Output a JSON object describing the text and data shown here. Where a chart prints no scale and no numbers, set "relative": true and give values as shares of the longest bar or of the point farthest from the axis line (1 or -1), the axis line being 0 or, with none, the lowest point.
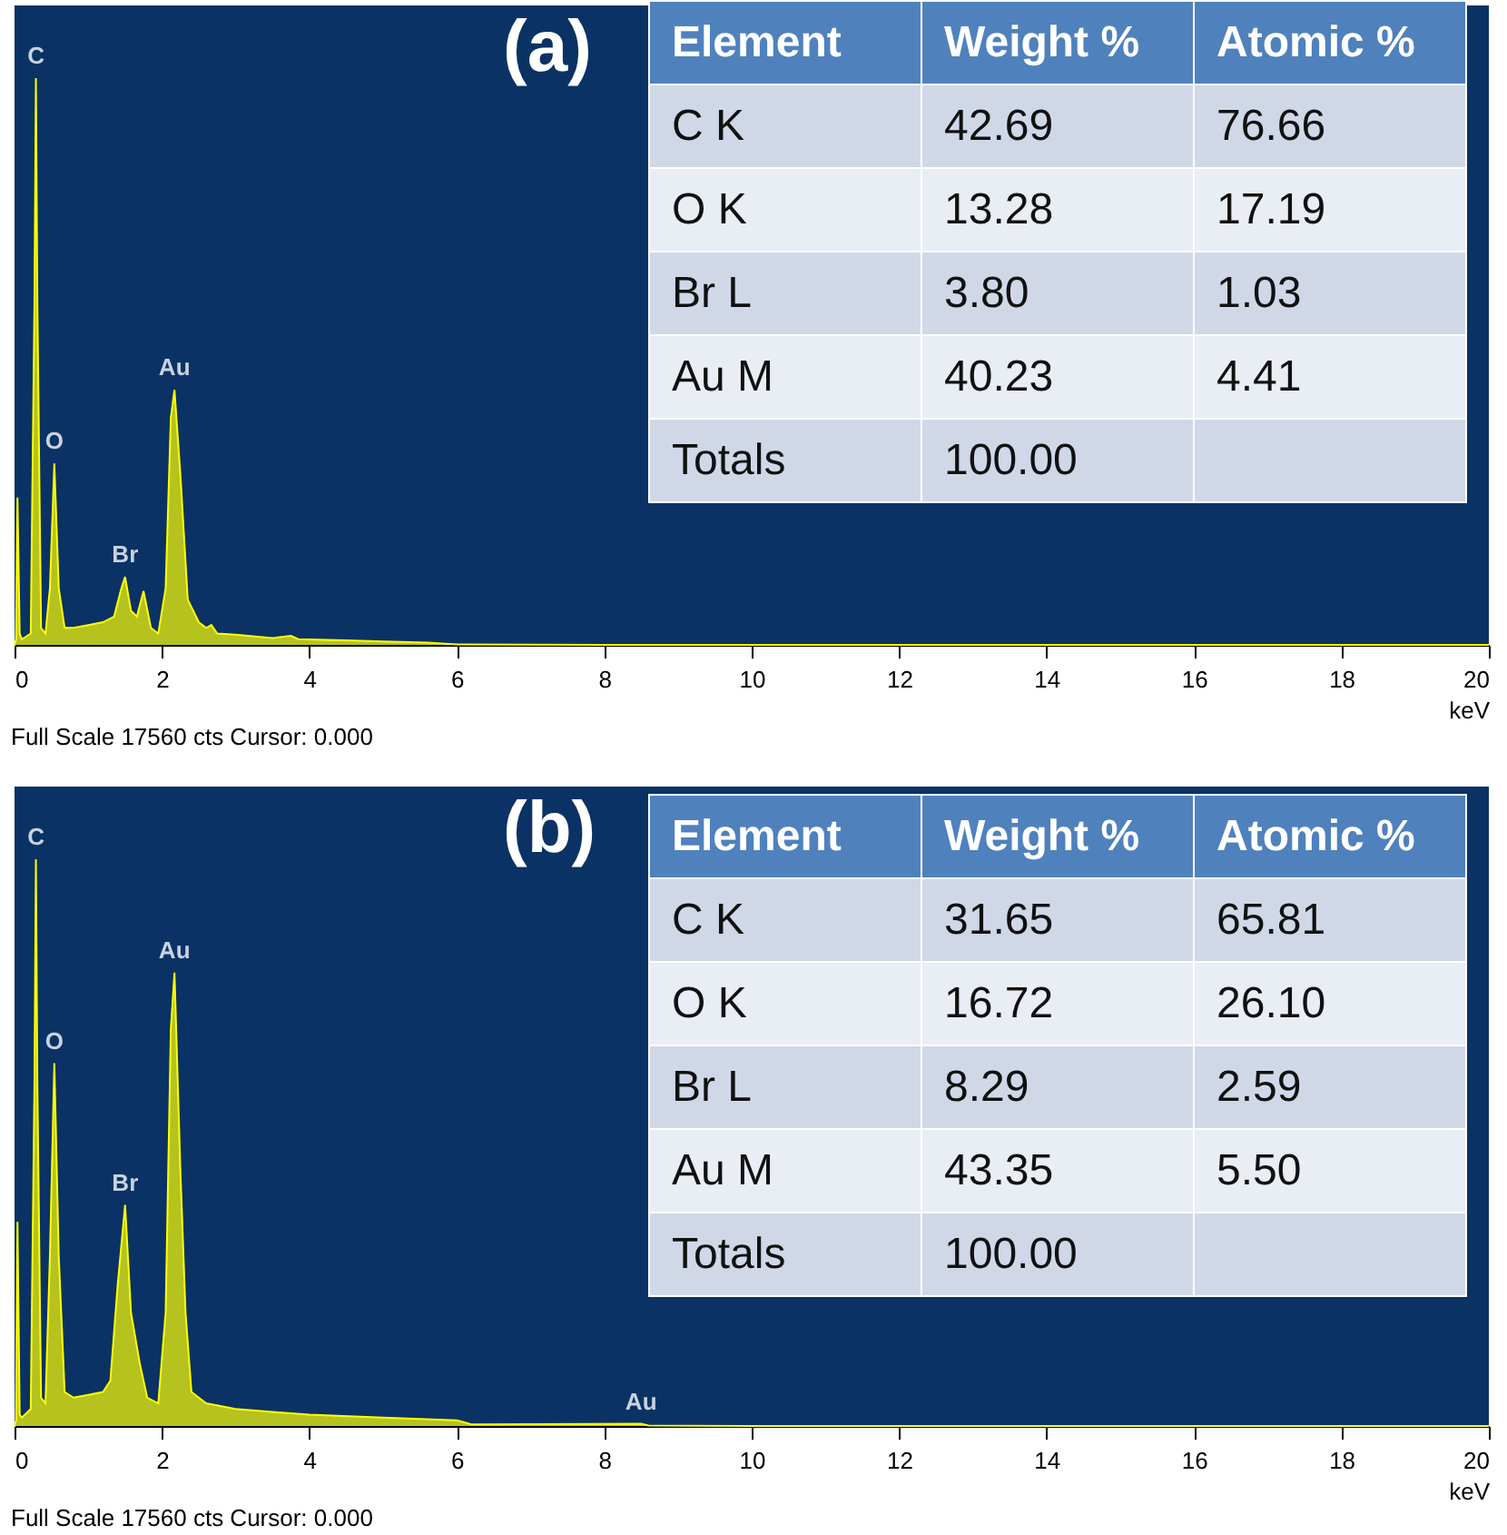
{
  "chart_data": [
    {
      "type": "area",
      "relative": true,
      "color": "#ffff00",
      "xlabel": "keV",
      "xlim": [
        0,
        20
      ],
      "xticks": [
        0,
        2,
        4,
        6,
        8,
        10,
        12,
        14,
        16,
        18,
        20
      ],
      "x": [
        0,
        0.02,
        0.04,
        0.07,
        0.1,
        0.22,
        0.27,
        0.29,
        0.31,
        0.36,
        0.42,
        0.48,
        0.54,
        0.6,
        0.68,
        0.8,
        1.0,
        1.2,
        1.35,
        1.45,
        1.5,
        1.58,
        1.66,
        1.75,
        1.85,
        1.95,
        2.05,
        2.12,
        2.17,
        2.25,
        2.35,
        2.5,
        2.6,
        2.67,
        2.75,
        3.0,
        3.5,
        3.75,
        3.85,
        4.5,
        5.0,
        5.6,
        6.0,
        8,
        20
      ],
      "values": [
        0,
        0.01,
        0.26,
        0.02,
        0.01,
        0.02,
        0.6,
        1,
        0.6,
        0.03,
        0.02,
        0.1,
        0.32,
        0.1,
        0.03,
        0.03,
        0.035,
        0.04,
        0.05,
        0.1,
        0.12,
        0.06,
        0.05,
        0.095,
        0.03,
        0.02,
        0.1,
        0.4,
        0.45,
        0.3,
        0.08,
        0.04,
        0.03,
        0.035,
        0.02,
        0.018,
        0.012,
        0.016,
        0.01,
        0.008,
        0.006,
        0.004,
        0.001,
        0,
        0
      ],
      "annotations": [
        "(a)",
        "Full Scale 17560 cts Cursor: 0.000",
        {
          "text": "C",
          "x": 0.29,
          "y": 1
        },
        {
          "text": "O",
          "x": 0.54,
          "y": 0.32
        },
        {
          "text": "Br",
          "x": 1.5,
          "y": 0.12
        },
        {
          "text": "Au",
          "x": 2.17,
          "y": 0.45
        }
      ]
    },
    {
      "type": "other",
      "annotations": [
        "Element",
        "Weight %",
        "Atomic %",
        "C K",
        "42.69",
        "76.66",
        "O K",
        "13.28",
        "17.19",
        "Br L",
        "3.80",
        "1.03",
        "Au M",
        "40.23",
        "4.41",
        "Totals",
        "100.00"
      ]
    },
    {
      "type": "area",
      "relative": true,
      "color": "#ffff00",
      "xlabel": "keV",
      "xlim": [
        0,
        20
      ],
      "xticks": [
        0,
        2,
        4,
        6,
        8,
        10,
        12,
        14,
        16,
        18,
        20
      ],
      "x": [
        0,
        0.02,
        0.04,
        0.07,
        0.1,
        0.22,
        0.27,
        0.29,
        0.31,
        0.36,
        0.42,
        0.48,
        0.54,
        0.6,
        0.68,
        0.8,
        1.0,
        1.2,
        1.3,
        1.4,
        1.5,
        1.58,
        1.7,
        1.8,
        1.95,
        2.05,
        2.12,
        2.17,
        2.25,
        2.32,
        2.4,
        2.6,
        3.0,
        3.5,
        4.0,
        5.0,
        6.0,
        6.2,
        8.5,
        8.6,
        10,
        20
      ],
      "values": [
        0,
        0.01,
        0.36,
        0.02,
        0.015,
        0.03,
        0.6,
        1,
        0.6,
        0.05,
        0.04,
        0.3,
        0.64,
        0.3,
        0.06,
        0.05,
        0.055,
        0.06,
        0.08,
        0.25,
        0.39,
        0.2,
        0.11,
        0.05,
        0.04,
        0.2,
        0.7,
        0.8,
        0.45,
        0.2,
        0.06,
        0.04,
        0.03,
        0.025,
        0.02,
        0.015,
        0.01,
        0.003,
        0.004,
        0.001,
        0,
        0
      ],
      "annotations": [
        "(b)",
        "Full Scale 17560 cts Cursor: 0.000",
        {
          "text": "C",
          "x": 0.29,
          "y": 1
        },
        {
          "text": "O",
          "x": 0.54,
          "y": 0.64
        },
        {
          "text": "Br",
          "x": 1.5,
          "y": 0.39
        },
        {
          "text": "Au",
          "x": 2.17,
          "y": 0.8
        },
        {
          "text": "Au",
          "x": 8.5,
          "y": 0.004
        }
      ]
    },
    {
      "type": "other",
      "annotations": [
        "Element",
        "Weight %",
        "Atomic %",
        "C K",
        "31.65",
        "65.81",
        "O K",
        "16.72",
        "26.10",
        "Br L",
        "8.29",
        "2.59",
        "Au M",
        "43.35",
        "5.50",
        "Totals",
        "100.00"
      ]
    }
  ]
}
